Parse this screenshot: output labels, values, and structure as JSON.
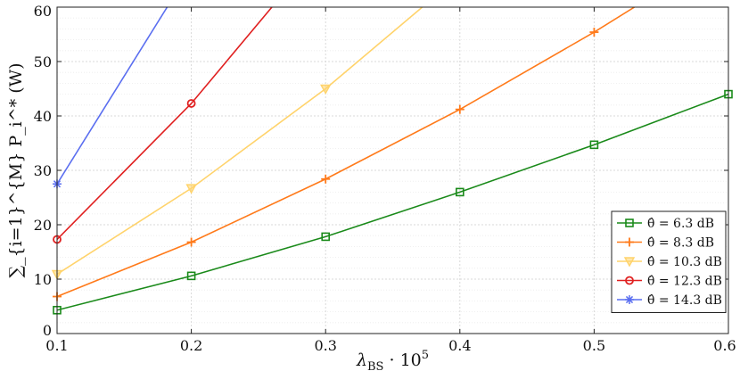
{
  "chart_data": {
    "type": "line",
    "xlabel_main": "λ",
    "xlabel_sub": "BS",
    "xlabel_rest": " · 10",
    "xlabel_sup": "5",
    "ylabel": "∑_{i=1}^{M} P_i^* (W)",
    "xlim": [
      0.1,
      0.6
    ],
    "ylim": [
      0,
      60
    ],
    "x_ticks": [
      "0.1",
      "0.2",
      "0.3",
      "0.4",
      "0.5",
      "0.6"
    ],
    "y_ticks": [
      "0",
      "10",
      "20",
      "30",
      "40",
      "50",
      "60"
    ],
    "grid": true,
    "legend_position": "bottom-right",
    "x": [
      0.1,
      0.2,
      0.3,
      0.4,
      0.5,
      0.6
    ],
    "series": [
      {
        "name": "θ̂ = 6.3 dB",
        "color": "#1a8a1a",
        "marker": "square",
        "values": [
          4.3,
          10.6,
          17.8,
          26.0,
          34.7,
          44.0
        ],
        "ext_x": 0.6,
        "ext_y": 44.0
      },
      {
        "name": "θ̂ = 8.3 dB",
        "color": "#ff7a1a",
        "marker": "plus",
        "values": [
          6.8,
          16.8,
          28.4,
          41.2,
          55.4,
          null
        ],
        "ext_x": 0.53,
        "ext_y": 60
      },
      {
        "name": "θ̂ = 10.3 dB",
        "color": "#ffd36b",
        "marker": "triangle",
        "values": [
          10.9,
          26.7,
          45.0,
          null,
          null,
          null
        ],
        "ext_x": 0.372,
        "ext_y": 60
      },
      {
        "name": "θ̂ = 12.3 dB",
        "color": "#e02020",
        "marker": "circle",
        "values": [
          17.3,
          42.3,
          null,
          null,
          null,
          null
        ],
        "ext_x": 0.26,
        "ext_y": 60
      },
      {
        "name": "θ̂ = 14.3 dB",
        "color": "#5a6ef0",
        "marker": "asterisk",
        "values": [
          27.5,
          null,
          null,
          null,
          null,
          null
        ],
        "ext_x": 0.182,
        "ext_y": 60
      }
    ]
  }
}
